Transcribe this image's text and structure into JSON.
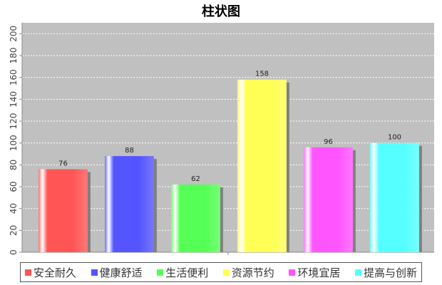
{
  "chart_data": {
    "type": "bar",
    "title": "柱状图",
    "xlabel": "",
    "ylabel": "",
    "categories": [
      "安全耐久",
      "健康舒适",
      "生活便利",
      "资源节约",
      "环境宜居",
      "提高与创新"
    ],
    "values": [
      76,
      88,
      62,
      158,
      96,
      100
    ],
    "colors": [
      "#ff5555",
      "#5555ff",
      "#55ff55",
      "#ffff55",
      "#ff55ff",
      "#55ffff"
    ],
    "ylim": [
      0,
      210
    ],
    "yticks": [
      0,
      20,
      40,
      60,
      80,
      100,
      120,
      140,
      160,
      180,
      200
    ],
    "grid": true,
    "legend_position": "bottom",
    "plot_background": "#c0c0c0"
  }
}
